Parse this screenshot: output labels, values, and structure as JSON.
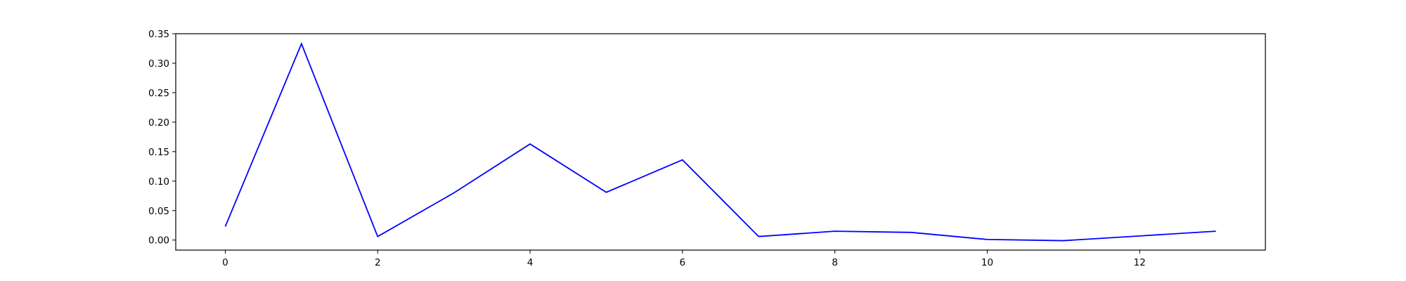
{
  "chart_data": {
    "type": "line",
    "title": "",
    "xlabel": "",
    "ylabel": "",
    "x": [
      0,
      1,
      2,
      3,
      4,
      5,
      6,
      7,
      8,
      9,
      10,
      11,
      12,
      13
    ],
    "series": [
      {
        "color": "#0000ff",
        "values": [
          0.023,
          0.333,
          0.006,
          0.08,
          0.163,
          0.081,
          0.136,
          0.006,
          0.015,
          0.013,
          0.001,
          -0.001,
          0.007,
          0.015
        ]
      }
    ],
    "xlim": [
      -0.65,
      13.65
    ],
    "ylim": [
      -0.017,
      0.35
    ],
    "xticks": [
      0,
      2,
      4,
      6,
      8,
      10,
      12
    ],
    "xtick_labels": [
      "0",
      "2",
      "4",
      "6",
      "8",
      "10",
      "12"
    ],
    "yticks": [
      0.0,
      0.05,
      0.1,
      0.15,
      0.2,
      0.25,
      0.3,
      0.35
    ],
    "ytick_labels": [
      "0.00",
      "0.05",
      "0.10",
      "0.15",
      "0.20",
      "0.25",
      "0.30",
      "0.35"
    ],
    "grid": false,
    "legend": false
  }
}
